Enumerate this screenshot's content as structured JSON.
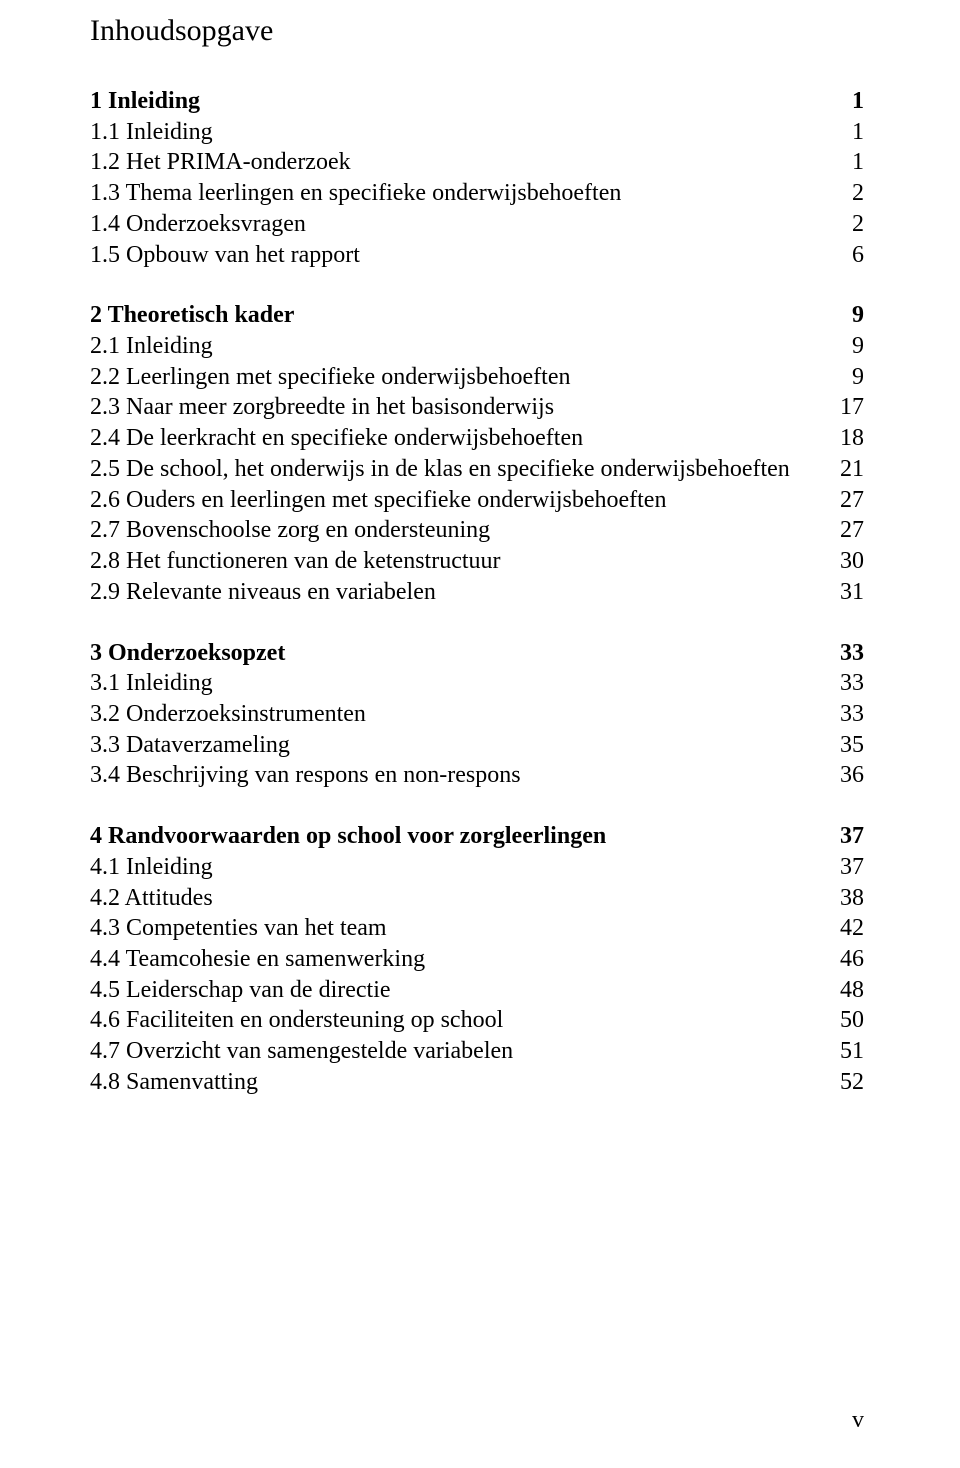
{
  "title": "Inhoudsopgave",
  "footer": "v",
  "sections": [
    {
      "heading": {
        "label": "1 Inleiding",
        "page": "1"
      },
      "items": [
        {
          "label": "1.1  Inleiding",
          "page": "1"
        },
        {
          "label": "1.2  Het PRIMA-onderzoek",
          "page": "1"
        },
        {
          "label": "1.3  Thema leerlingen en specifieke onderwijsbehoeften",
          "page": "2"
        },
        {
          "label": "1.4  Onderzoeksvragen",
          "page": "2"
        },
        {
          "label": "1.5  Opbouw van het rapport",
          "page": "6"
        }
      ]
    },
    {
      "heading": {
        "label": "2 Theoretisch kader",
        "page": "9"
      },
      "items": [
        {
          "label": "2.1  Inleiding",
          "page": "9"
        },
        {
          "label": "2.2  Leerlingen met specifieke onderwijsbehoeften",
          "page": "9"
        },
        {
          "label": "2.3  Naar meer zorgbreedte in het basisonderwijs",
          "page": "17"
        },
        {
          "label": "2.4  De leerkracht en specifieke onderwijsbehoeften",
          "page": "18"
        },
        {
          "label": "2.5  De school, het onderwijs in de klas en specifieke onderwijsbehoeften",
          "page": "21"
        },
        {
          "label": "2.6  Ouders en leerlingen met specifieke onderwijsbehoeften",
          "page": "27"
        },
        {
          "label": "2.7  Bovenschoolse zorg en ondersteuning",
          "page": "27"
        },
        {
          "label": "2.8  Het functioneren van de ketenstructuur",
          "page": "30"
        },
        {
          "label": "2.9  Relevante niveaus en variabelen",
          "page": "31"
        }
      ]
    },
    {
      "heading": {
        "label": "3 Onderzoeksopzet",
        "page": "33"
      },
      "items": [
        {
          "label": "3.1 Inleiding",
          "page": "33"
        },
        {
          "label": "3.2 Onderzoeksinstrumenten",
          "page": "33"
        },
        {
          "label": "3.3 Dataverzameling",
          "page": "35"
        },
        {
          "label": "3.4 Beschrijving van respons en non-respons",
          "page": "36"
        }
      ]
    },
    {
      "heading": {
        "label": "4 Randvoorwaarden op school voor zorgleerlingen",
        "page": "37"
      },
      "items": [
        {
          "label": "4.1  Inleiding",
          "page": "37"
        },
        {
          "label": "4.2  Attitudes",
          "page": "38"
        },
        {
          "label": "4.3  Competenties van het team",
          "page": "42"
        },
        {
          "label": "4.4  Teamcohesie en samenwerking",
          "page": "46"
        },
        {
          "label": "4.5  Leiderschap van de directie",
          "page": "48"
        },
        {
          "label": "4.6  Faciliteiten en ondersteuning op school",
          "page": "50"
        },
        {
          "label": "4.7  Overzicht van samengestelde variabelen",
          "page": "51"
        },
        {
          "label": "4.8  Samenvatting",
          "page": "52"
        }
      ]
    }
  ]
}
